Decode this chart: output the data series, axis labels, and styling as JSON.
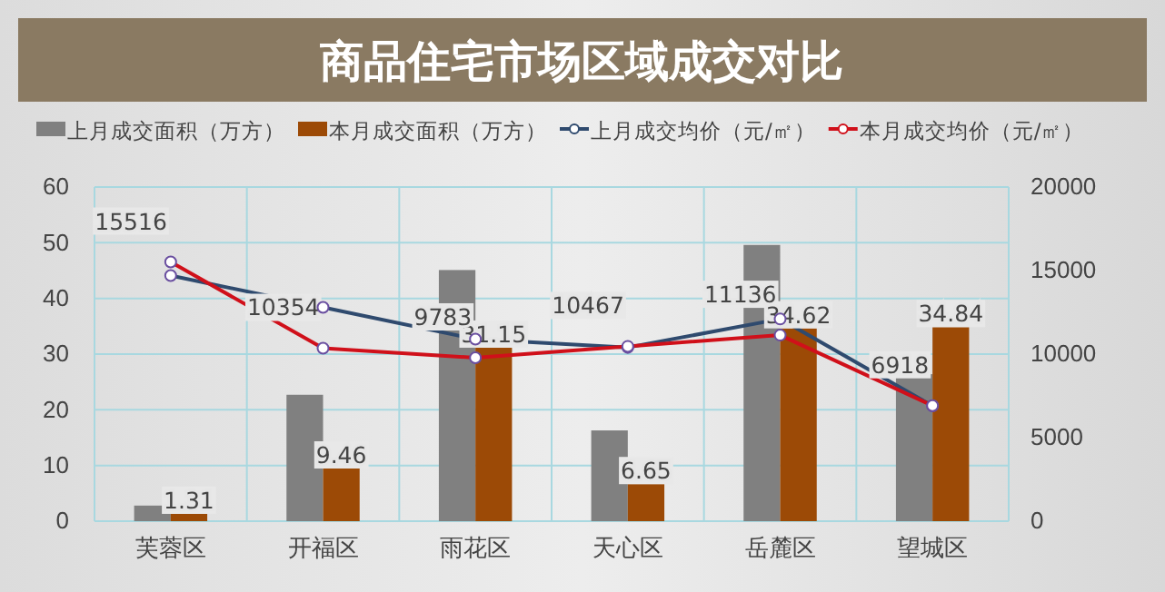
{
  "chart_data": {
    "type": "bar",
    "title": "商品住宅市场区域成交对比",
    "categories": [
      "芙蓉区",
      "开福区",
      "雨花区",
      "天心区",
      "岳麓区",
      "望城区"
    ],
    "series": [
      {
        "name": "上月成交面积（万方）",
        "color": "#808080",
        "values": [
          2.8,
          22.7,
          45.1,
          16.3,
          49.6,
          26.4
        ]
      },
      {
        "name": "本月成交面积（万方）",
        "color": "#9c4a06",
        "values": [
          1.31,
          9.46,
          31.15,
          6.65,
          34.62,
          34.84
        ],
        "value_labels": [
          "1.31",
          "9.46",
          "31.15",
          "6.65",
          "34.62",
          "34.84"
        ]
      },
      {
        "name": "上月成交均价（元/㎡）",
        "type": "line",
        "axis": "y2",
        "color": "#2f4a6e",
        "values": [
          14700,
          12800,
          10900,
          10400,
          12100,
          6900
        ]
      },
      {
        "name": "本月成交均价（元/㎡）",
        "type": "line",
        "axis": "y2",
        "color": "#d0101a",
        "values": [
          15516,
          10354,
          9783,
          10467,
          11136,
          6918
        ],
        "value_labels": [
          "15516",
          "10354",
          "9783",
          "10467",
          "11136",
          "6918"
        ]
      }
    ],
    "ylim": [
      0,
      60
    ],
    "yticks": [
      0,
      10,
      20,
      30,
      40,
      50,
      60
    ],
    "y2lim": [
      0,
      20000
    ],
    "y2ticks": [
      0,
      5000,
      10000,
      15000,
      20000
    ],
    "grid": true,
    "legend": "top",
    "marker": "circle",
    "line_style": "solid"
  }
}
